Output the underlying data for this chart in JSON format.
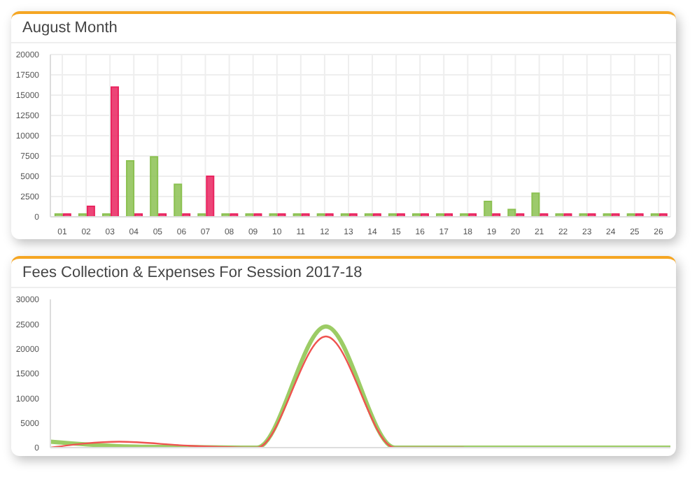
{
  "chart_data": [
    {
      "type": "bar",
      "title": "August Month",
      "categories": [
        "01",
        "02",
        "03",
        "04",
        "05",
        "06",
        "07",
        "08",
        "09",
        "10",
        "11",
        "12",
        "13",
        "14",
        "15",
        "16",
        "17",
        "18",
        "19",
        "20",
        "21",
        "22",
        "23",
        "24",
        "25",
        "26"
      ],
      "series": [
        {
          "color": "#8cc152",
          "values": [
            0,
            0,
            0,
            6900,
            7400,
            4000,
            0,
            0,
            0,
            0,
            0,
            0,
            0,
            0,
            0,
            0,
            0,
            0,
            1900,
            900,
            2900,
            0,
            0,
            0,
            0,
            0
          ]
        },
        {
          "color": "#e9245f",
          "values": [
            0,
            1300,
            16000,
            0,
            0,
            0,
            5000,
            0,
            0,
            0,
            0,
            0,
            0,
            0,
            0,
            0,
            0,
            0,
            0,
            0,
            0,
            0,
            0,
            0,
            0,
            0
          ]
        }
      ],
      "ylim": [
        0,
        20000
      ],
      "yticks": [
        0,
        2500,
        5000,
        7500,
        10000,
        12500,
        15000,
        17500,
        20000
      ],
      "grid": true
    },
    {
      "type": "line",
      "title": "Fees Collection & Expenses For Session 2017-18",
      "categories": [
        null,
        null,
        null,
        null,
        null,
        null,
        null,
        null,
        null,
        null
      ],
      "series": [
        {
          "color": "#9ccc65",
          "values": [
            1200,
            300,
            100,
            0,
            24500,
            0,
            0,
            0,
            0,
            0
          ]
        },
        {
          "color": "#ef5350",
          "values": [
            0,
            1200,
            400,
            0,
            22500,
            0,
            0,
            null,
            null,
            null
          ]
        }
      ],
      "ylim": [
        0,
        30000
      ],
      "yticks": [
        0,
        5000,
        10000,
        15000,
        20000,
        25000,
        30000
      ],
      "grid": false,
      "marker": "none"
    }
  ]
}
